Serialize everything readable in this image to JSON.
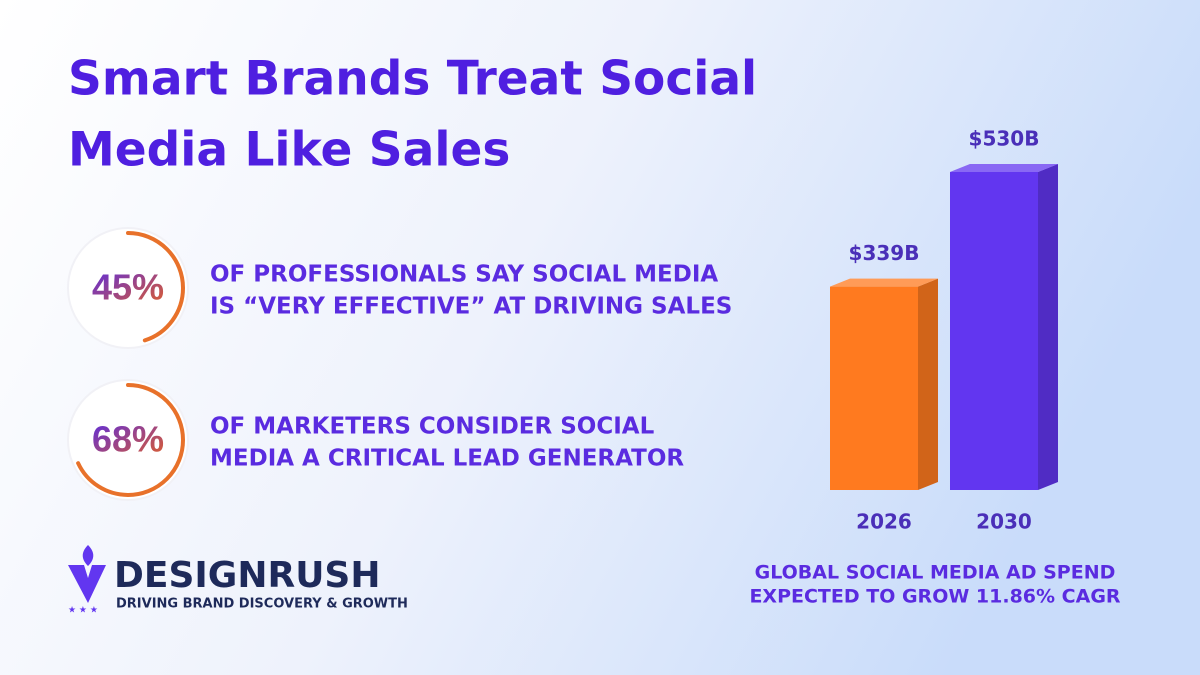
{
  "title": [
    "Smart Brands Treat Social",
    "Media Like Sales"
  ],
  "stats": [
    {
      "value": 45,
      "label": "45%",
      "text": [
        "OF PROFESSIONALS SAY SOCIAL MEDIA",
        "IS “VERY EFFECTIVE” AT DRIVING SALES"
      ]
    },
    {
      "value": 68,
      "label": "68%",
      "text": [
        "OF MARKETERS CONSIDER SOCIAL",
        "MEDIA A CRITICAL LEAD GENERATOR"
      ]
    }
  ],
  "chart_data": {
    "type": "bar",
    "categories": [
      "2026",
      "2030"
    ],
    "values": [
      339,
      530
    ],
    "value_labels": [
      "$339B",
      "$530B"
    ],
    "colors": [
      "#ff7a1f",
      "#6236f0"
    ],
    "caption": [
      "GLOBAL SOCIAL MEDIA AD SPEND",
      "EXPECTED TO GROW 11.86% CAGR"
    ]
  },
  "brand": {
    "name": "DESIGNRUSH",
    "tagline": "DRIVING BRAND DISCOVERY & GROWTH"
  }
}
